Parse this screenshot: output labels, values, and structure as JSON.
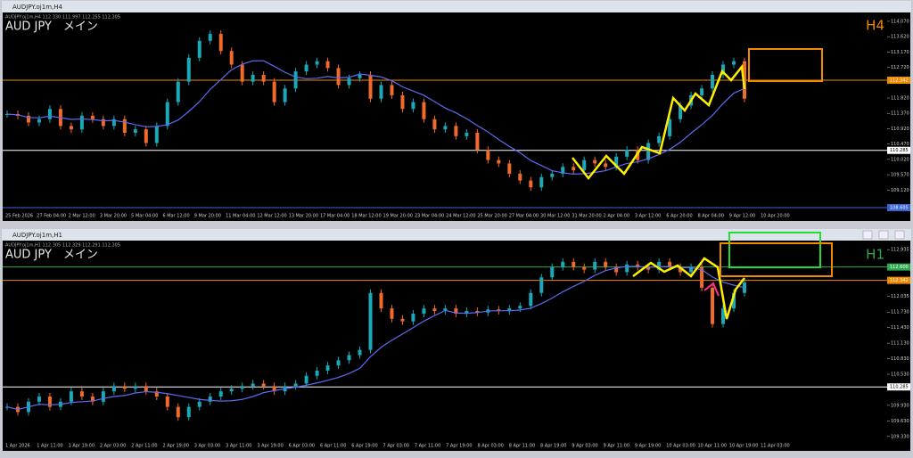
{
  "windows": [
    {
      "title": "AUDJPY.oj1m,H4",
      "header_text": "AUDJPY.oj1m,H4  112.330 111.997 112.255 112.305",
      "symbol_label": "AUD JPY　メイン",
      "timeframe": "H4",
      "timeframe_color": "#f08a00",
      "ylim": [
        108.5,
        114.33
      ],
      "yticks": [
        {
          "value": 114.07,
          "label": "114.070"
        },
        {
          "value": 113.62,
          "label": "113.620"
        },
        {
          "value": 113.17,
          "label": "113.170"
        },
        {
          "value": 112.72,
          "label": "112.720"
        },
        {
          "value": 111.82,
          "label": "111.820"
        },
        {
          "value": 111.37,
          "label": "111.370"
        },
        {
          "value": 110.92,
          "label": "110.920"
        },
        {
          "value": 110.47,
          "label": "110.470"
        },
        {
          "value": 110.02,
          "label": "110.020"
        },
        {
          "value": 109.57,
          "label": "109.570"
        },
        {
          "value": 109.12,
          "label": "109.120"
        }
      ],
      "price_tags": [
        {
          "value": 112.342,
          "label": "112.342",
          "color": "#f08a00"
        },
        {
          "value": 110.285,
          "label": "110.285",
          "color": "#ffffff"
        },
        {
          "value": 108.605,
          "label": "108.605",
          "color": "#3b63d8"
        }
      ],
      "xlabels": [
        "25 Feb 2026",
        "27 Feb 04:00",
        "2 Mar 12:00",
        "3 Mar 20:00",
        "5 Mar 04:00",
        "6 Mar 12:00",
        "9 Mar 20:00",
        "11 Mar 04:00",
        "12 Mar 12:00",
        "13 Mar 20:00",
        "17 Mar 04:00",
        "18 Mar 12:00",
        "19 Mar 20:00",
        "23 Mar 04:00",
        "24 Mar 12:00",
        "25 Mar 20:00",
        "27 Mar 04:00",
        "30 Mar 12:00",
        "31 Mar 20:00",
        "2 Apr 04:00",
        "3 Apr 12:00",
        "6 Apr 20:00",
        "8 Apr 04:00",
        "9 Apr 12:00",
        "10 Apr 20:00"
      ],
      "closes": [
        111.35,
        111.3,
        111.1,
        111.2,
        111.5,
        111.0,
        110.9,
        111.3,
        111.2,
        111.0,
        111.2,
        110.8,
        110.9,
        110.5,
        111.0,
        111.7,
        112.3,
        113.0,
        113.5,
        113.7,
        113.2,
        112.8,
        112.3,
        112.5,
        112.3,
        111.7,
        112.1,
        112.6,
        112.8,
        112.9,
        112.7,
        112.2,
        112.4,
        112.5,
        111.8,
        112.2,
        111.9,
        111.5,
        111.7,
        111.2,
        110.9,
        111.0,
        110.7,
        110.8,
        110.3,
        110.0,
        109.9,
        109.6,
        109.4,
        109.2,
        109.5,
        109.6,
        109.8,
        109.7,
        110.0,
        109.9,
        109.8,
        110.1,
        110.3,
        110.0,
        110.5,
        110.7,
        111.2,
        111.6,
        111.9,
        112.1,
        112.5,
        112.8,
        112.9,
        111.8
      ]
    },
    {
      "title": "AUDJPY.oj1m,H1",
      "header_text": "AUDJPY.oj1m,H1  112.305 112.329 112.291 112.305",
      "symbol_label": "AUD JPY　メイン",
      "timeframe": "H1",
      "timeframe_color": "#2fa84f",
      "ylim": [
        109.24,
        113.11
      ],
      "yticks": [
        {
          "value": 112.935,
          "label": "112.935"
        },
        {
          "value": 112.035,
          "label": "112.035"
        },
        {
          "value": 111.73,
          "label": "111.730"
        },
        {
          "value": 111.43,
          "label": "111.430"
        },
        {
          "value": 111.13,
          "label": "111.130"
        },
        {
          "value": 110.83,
          "label": "110.830"
        },
        {
          "value": 110.53,
          "label": "110.530"
        },
        {
          "value": 109.93,
          "label": "109.930"
        },
        {
          "value": 109.63,
          "label": "109.630"
        },
        {
          "value": 109.33,
          "label": "109.330"
        }
      ],
      "price_tags": [
        {
          "value": 112.6,
          "label": "112.600",
          "color": "#2fa84f"
        },
        {
          "value": 112.342,
          "label": "112.342",
          "color": "#f08a00"
        },
        {
          "value": 110.285,
          "label": "110.285",
          "color": "#ffffff"
        }
      ],
      "xlabels": [
        "1 Apr 2026",
        "1 Apr 11:00",
        "1 Apr 19:00",
        "2 Apr 03:00",
        "2 Apr 11:00",
        "2 Apr 19:00",
        "3 Apr 03:00",
        "3 Apr 11:00",
        "3 Apr 19:00",
        "6 Apr 03:00",
        "6 Apr 11:00",
        "6 Apr 19:00",
        "7 Apr 03:00",
        "7 Apr 11:00",
        "7 Apr 19:00",
        "8 Apr 03:00",
        "8 Apr 11:00",
        "8 Apr 19:00",
        "9 Apr 03:00",
        "9 Apr 11:00",
        "9 Apr 19:00",
        "10 Apr 03:00",
        "10 Apr 11:00",
        "10 Apr 19:00",
        "11 Apr 03:00"
      ],
      "closes": [
        109.9,
        109.8,
        110.0,
        110.1,
        109.9,
        110.0,
        110.2,
        110.1,
        110.0,
        110.2,
        110.3,
        110.25,
        110.3,
        110.2,
        110.1,
        109.9,
        109.7,
        109.9,
        110.0,
        110.1,
        110.2,
        110.25,
        110.3,
        110.35,
        110.3,
        110.2,
        110.3,
        110.35,
        110.5,
        110.6,
        110.7,
        110.8,
        110.9,
        111.0,
        112.1,
        111.8,
        111.6,
        111.55,
        111.7,
        111.8,
        111.75,
        111.8,
        111.7,
        111.75,
        111.72,
        111.78,
        111.75,
        111.8,
        111.85,
        112.1,
        112.4,
        112.6,
        112.7,
        112.6,
        112.55,
        112.7,
        112.6,
        112.5,
        112.65,
        112.6,
        112.55,
        112.7,
        112.6,
        112.5,
        112.6,
        112.2,
        111.5,
        111.8,
        112.1,
        112.3
      ]
    }
  ]
}
